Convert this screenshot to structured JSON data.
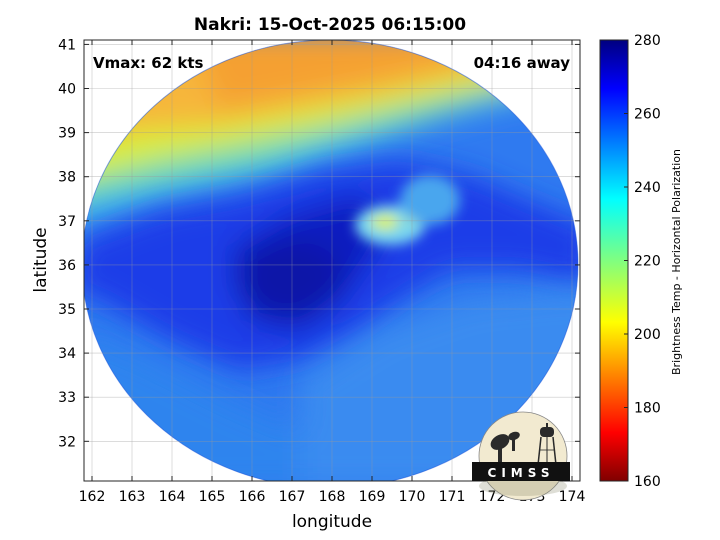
{
  "chart_data": {
    "type": "heatmap",
    "title": "Nakri: 15-Oct-2025 06:15:00",
    "xlabel": "longitude",
    "ylabel": "latitude",
    "xlim": [
      161.8,
      174.2
    ],
    "ylim": [
      31.1,
      41.1
    ],
    "xticks": [
      "162",
      "163",
      "164",
      "165",
      "166",
      "167",
      "168",
      "169",
      "170",
      "171",
      "172",
      "173",
      "174"
    ],
    "yticks": [
      "32",
      "33",
      "34",
      "35",
      "36",
      "37",
      "38",
      "39",
      "40",
      "41"
    ],
    "grid": true,
    "annotations": {
      "vmax": "Vmax: 62 kts",
      "time_away": "04:16 away"
    },
    "colorbar": {
      "label": "Brightness Temp - Horizontal Polarization",
      "range": [
        160,
        280
      ],
      "ticks": [
        "160",
        "180",
        "200",
        "220",
        "240",
        "260",
        "280"
      ],
      "colormap": "jet"
    },
    "swath_center": [
      168.0,
      35.8
    ],
    "swath_radius_lon": 5.8,
    "swath_radius_lat": 4.9,
    "regions": [
      {
        "name": "north warm band",
        "lat_range": [
          37.5,
          41.1
        ],
        "bt_range": [
          200,
          235
        ]
      },
      {
        "name": "convective core",
        "center": [
          167.2,
          35.8
        ],
        "bt_approx": 275
      },
      {
        "name": "cold background south",
        "lat_range": [
          31.1,
          35.0
        ],
        "bt_approx": 258
      }
    ],
    "logo": "CIMSS"
  }
}
